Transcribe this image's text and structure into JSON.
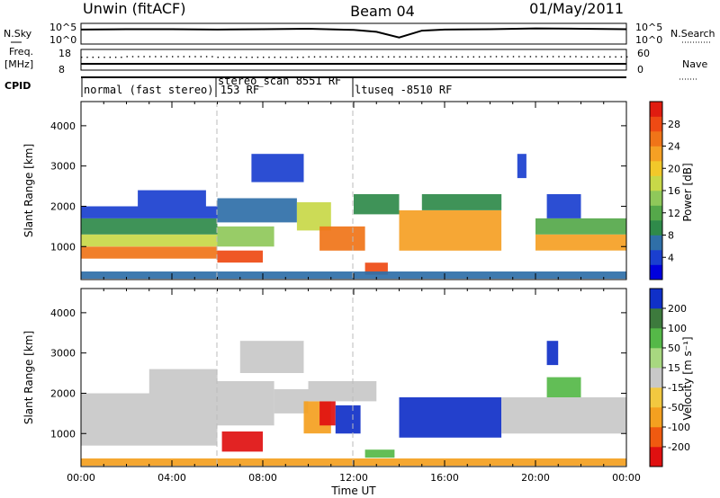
{
  "header": {
    "radar": "Unwin (fitACF)",
    "beam": "Beam 04",
    "date": "01/May/2011"
  },
  "strips": {
    "nsky_label": "N.Sky",
    "nsky_ticks": [
      "10^5",
      "10^0"
    ],
    "nsearch_label": "N.Search",
    "nsearch_ticks": [
      "10^5",
      "10^0"
    ],
    "freq_label_1": "Freq.",
    "freq_label_2": "[MHz]",
    "freq_ticks": [
      "18",
      "8"
    ],
    "nave_label": "Nave",
    "nave_ticks": [
      "60",
      "0"
    ],
    "cpid_label": "CPID",
    "cpid_segments": [
      {
        "label": "normal (fast stereo) 153 RF",
        "start_hour": 0
      },
      {
        "label": "stereo_scan 8551 RF",
        "start_hour": 6
      },
      {
        "label": "ltuseq -8510 RF",
        "start_hour": 12
      }
    ]
  },
  "panels": {
    "ylabel": "Slant Range [km]",
    "yticks": [
      "1000",
      "2000",
      "3000",
      "4000"
    ],
    "xlabel": "Time UT",
    "xticks": [
      "00:00",
      "04:00",
      "08:00",
      "12:00",
      "16:00",
      "20:00",
      "00:00"
    ],
    "power_label": "Power [dB]",
    "power_ticks": [
      "4",
      "8",
      "12",
      "16",
      "20",
      "24",
      "28"
    ],
    "velocity_label": "Velocity [m s⁻¹]",
    "velocity_ticks": [
      "-200",
      "-100",
      "-50",
      "-15",
      "15",
      "50",
      "100",
      "200"
    ]
  },
  "chart_data": [
    {
      "type": "line",
      "title": "N.Sky / N.Search",
      "x_unit": "hours UT",
      "xlim": [
        0,
        24
      ],
      "ylim_log10": [
        0,
        5
      ],
      "series": [
        {
          "name": "N.Sky",
          "x": [
            0,
            2,
            4,
            6,
            8,
            10,
            12,
            13,
            14,
            15,
            16,
            18,
            20,
            22,
            24
          ],
          "y_log10": [
            3.6,
            3.7,
            3.7,
            3.6,
            3.7,
            3.8,
            3.5,
            3.0,
            1.5,
            3.3,
            3.6,
            3.7,
            3.9,
            3.8,
            3.7
          ]
        }
      ]
    },
    {
      "type": "scatter",
      "title": "Freq. / Nave",
      "xlim": [
        0,
        24
      ],
      "ylim": [
        8,
        18
      ],
      "series": [
        {
          "name": "Nave",
          "x": [
            0,
            4,
            8,
            12,
            16,
            20,
            24
          ],
          "values": [
            40,
            42,
            40,
            41,
            41,
            42,
            41
          ]
        }
      ]
    },
    {
      "type": "heatmap",
      "title": "Power [dB]",
      "x_unit": "hours UT",
      "y_unit": "km",
      "xlim": [
        0,
        24
      ],
      "ylim": [
        180,
        4600
      ],
      "colorbar": {
        "min": 0,
        "max": 32,
        "ticks": [
          4,
          8,
          12,
          16,
          20,
          24,
          28
        ]
      },
      "bands": [
        {
          "t0": 0.0,
          "t1": 6.0,
          "r0": 700,
          "r1": 1000,
          "value": 26
        },
        {
          "t0": 0.0,
          "t1": 6.0,
          "r0": 1000,
          "r1": 1300,
          "value": 18
        },
        {
          "t0": 0.0,
          "t1": 6.0,
          "r0": 1300,
          "r1": 1700,
          "value": 10
        },
        {
          "t0": 0.0,
          "t1": 6.0,
          "r0": 1700,
          "r1": 2000,
          "value": 5
        },
        {
          "t0": 2.5,
          "t1": 5.5,
          "r0": 2000,
          "r1": 2400,
          "value": 4
        },
        {
          "t0": 6.0,
          "t1": 8.0,
          "r0": 600,
          "r1": 900,
          "value": 28
        },
        {
          "t0": 6.0,
          "t1": 8.5,
          "r0": 1000,
          "r1": 1500,
          "value": 14
        },
        {
          "t0": 6.0,
          "t1": 9.5,
          "r0": 1600,
          "r1": 2200,
          "value": 6
        },
        {
          "t0": 7.5,
          "t1": 9.8,
          "r0": 2600,
          "r1": 3300,
          "value": 5
        },
        {
          "t0": 9.5,
          "t1": 11.0,
          "r0": 1400,
          "r1": 2100,
          "value": 18
        },
        {
          "t0": 10.5,
          "t1": 12.5,
          "r0": 900,
          "r1": 1500,
          "value": 26
        },
        {
          "t0": 12.5,
          "t1": 13.5,
          "r0": 300,
          "r1": 600,
          "value": 27
        },
        {
          "t0": 12.0,
          "t1": 14.0,
          "r0": 1800,
          "r1": 2300,
          "value": 10
        },
        {
          "t0": 14.0,
          "t1": 18.5,
          "r0": 900,
          "r1": 1900,
          "value": 22
        },
        {
          "t0": 15.0,
          "t1": 18.5,
          "r0": 1900,
          "r1": 2300,
          "value": 8
        },
        {
          "t0": 20.0,
          "t1": 24.0,
          "r0": 900,
          "r1": 1300,
          "value": 22
        },
        {
          "t0": 20.0,
          "t1": 24.0,
          "r0": 1300,
          "r1": 1700,
          "value": 12
        },
        {
          "t0": 20.5,
          "t1": 22.0,
          "r0": 1700,
          "r1": 2300,
          "value": 5
        },
        {
          "t0": 19.2,
          "t1": 19.6,
          "r0": 2700,
          "r1": 3300,
          "value": 5
        },
        {
          "t0": 0.0,
          "t1": 24.0,
          "r0": 200,
          "r1": 380,
          "value": 6
        }
      ]
    },
    {
      "type": "heatmap",
      "title": "Velocity [m s⁻¹]",
      "x_unit": "hours UT",
      "y_unit": "km",
      "xlim": [
        0,
        24
      ],
      "ylim": [
        180,
        4600
      ],
      "colorbar": {
        "ticks": [
          -200,
          -100,
          -50,
          -15,
          15,
          50,
          100,
          200
        ]
      },
      "bands": [
        {
          "t0": 0.0,
          "t1": 6.0,
          "r0": 700,
          "r1": 2000,
          "value": 0
        },
        {
          "t0": 3.0,
          "t1": 6.0,
          "r0": 2000,
          "r1": 2600,
          "value": 0
        },
        {
          "t0": 6.0,
          "t1": 8.5,
          "r0": 1200,
          "r1": 2300,
          "value": 0
        },
        {
          "t0": 6.2,
          "t1": 8.0,
          "r0": 550,
          "r1": 1050,
          "value": -150
        },
        {
          "t0": 7.0,
          "t1": 9.8,
          "r0": 2500,
          "r1": 3300,
          "value": 0
        },
        {
          "t0": 8.5,
          "t1": 10.0,
          "r0": 1500,
          "r1": 2100,
          "value": 0
        },
        {
          "t0": 9.8,
          "t1": 11.0,
          "r0": 1000,
          "r1": 1800,
          "value": -60
        },
        {
          "t0": 10.5,
          "t1": 11.2,
          "r0": 1200,
          "r1": 1800,
          "value": -200
        },
        {
          "t0": 11.2,
          "t1": 12.3,
          "r0": 1000,
          "r1": 1700,
          "value": 200
        },
        {
          "t0": 10.0,
          "t1": 13.0,
          "r0": 1800,
          "r1": 2300,
          "value": 0
        },
        {
          "t0": 12.5,
          "t1": 13.8,
          "r0": 400,
          "r1": 600,
          "value": 60
        },
        {
          "t0": 14.0,
          "t1": 18.5,
          "r0": 900,
          "r1": 1900,
          "value": 200
        },
        {
          "t0": 18.5,
          "t1": 24.0,
          "r0": 1000,
          "r1": 1900,
          "value": 0
        },
        {
          "t0": 20.5,
          "t1": 22.0,
          "r0": 1900,
          "r1": 2400,
          "value": 30
        },
        {
          "t0": 20.5,
          "t1": 21.0,
          "r0": 2700,
          "r1": 3300,
          "value": 200
        },
        {
          "t0": 0.0,
          "t1": 24.0,
          "r0": 200,
          "r1": 380,
          "value": -30
        }
      ]
    }
  ]
}
